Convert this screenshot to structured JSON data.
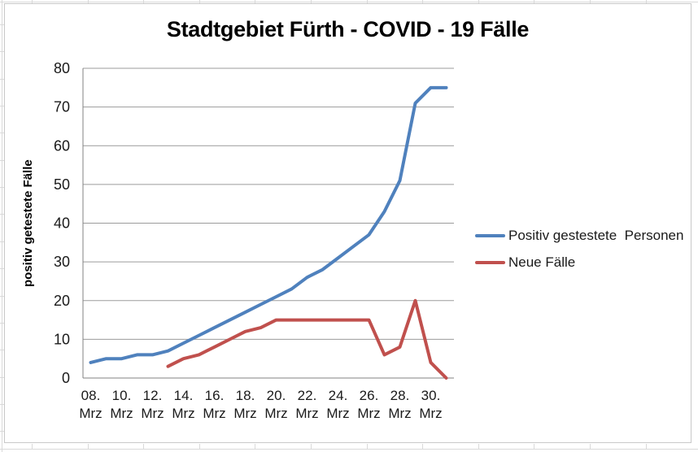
{
  "title": "Stadtgebiet Fürth - COVID - 19 Fälle",
  "chart_data": {
    "type": "line",
    "categories": [
      "08. Mrz",
      "09. Mrz",
      "10. Mrz",
      "11. Mrz",
      "12. Mrz",
      "13. Mrz",
      "14. Mrz",
      "15. Mrz",
      "16. Mrz",
      "17. Mrz",
      "18. Mrz",
      "19. Mrz",
      "20. Mrz",
      "21. Mrz",
      "22. Mrz",
      "23. Mrz",
      "24. Mrz",
      "25. Mrz",
      "26. Mrz",
      "27. Mrz",
      "28. Mrz",
      "29. Mrz",
      "30. Mrz",
      "31. Mrz"
    ],
    "x_tick_every": 2,
    "series": [
      {
        "name": "Positiv gestestete  Personen",
        "color": "#4F81BD",
        "values": [
          4,
          5,
          5,
          6,
          6,
          7,
          9,
          11,
          13,
          15,
          17,
          19,
          21,
          23,
          26,
          28,
          31,
          34,
          37,
          43,
          51,
          71,
          75,
          75
        ]
      },
      {
        "name": "Neue Fälle",
        "color": "#C0504D",
        "values": [
          null,
          null,
          null,
          null,
          null,
          3,
          5,
          6,
          8,
          10,
          12,
          13,
          15,
          15,
          15,
          15,
          15,
          15,
          15,
          6,
          8,
          20,
          4,
          0
        ]
      }
    ],
    "xlabel": "",
    "ylabel": "positiv getestete Fälle",
    "ylim": [
      0,
      80
    ],
    "ytick_step": 10,
    "grid": true,
    "grid_color": "#9B9B9B",
    "axis_color": "#808080",
    "legend_position": "right"
  }
}
